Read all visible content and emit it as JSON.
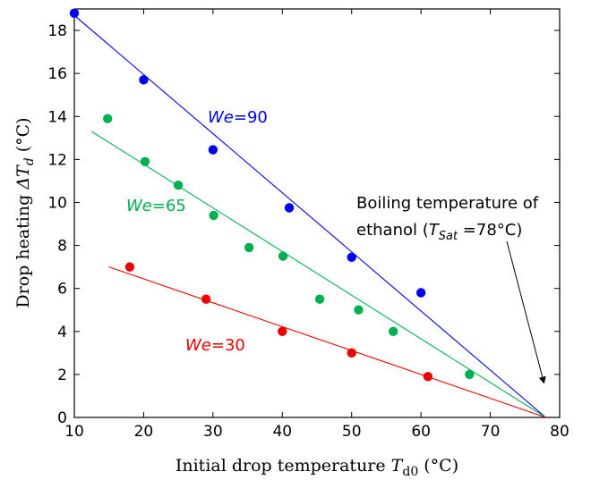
{
  "chart_data": {
    "type": "scatter",
    "xlabel": {
      "main": "Initial drop temperature ",
      "sym": "T",
      "sub": "d0",
      "unit": " (°C)"
    },
    "ylabel": {
      "main": "Drop heating  ",
      "sym": "ΔT",
      "sub": "d",
      "unit": "  (°C)"
    },
    "xlim": [
      10,
      80
    ],
    "ylim": [
      0,
      19
    ],
    "xticks": [
      10,
      20,
      30,
      40,
      50,
      60,
      70,
      80
    ],
    "yticks": [
      0,
      2,
      4,
      6,
      8,
      10,
      12,
      14,
      16,
      18
    ],
    "grid": false,
    "series": [
      {
        "name": "We=90",
        "color": "#0000ee",
        "points": [
          [
            10,
            18.8
          ],
          [
            20,
            15.7
          ],
          [
            30,
            12.45
          ],
          [
            41,
            9.75
          ],
          [
            50,
            7.45
          ],
          [
            60,
            5.8
          ]
        ],
        "fit": [
          [
            10,
            18.7
          ],
          [
            78,
            0
          ]
        ]
      },
      {
        "name": "We=65",
        "color": "#00b050",
        "points": [
          [
            14.8,
            13.9
          ],
          [
            20.2,
            11.9
          ],
          [
            25,
            10.8
          ],
          [
            30.1,
            9.4
          ],
          [
            35.2,
            7.9
          ],
          [
            40.1,
            7.5
          ],
          [
            45.4,
            5.5
          ],
          [
            51,
            5.0
          ],
          [
            56,
            4.0
          ],
          [
            67,
            2.0
          ]
        ],
        "fit": [
          [
            12.5,
            13.3
          ],
          [
            78,
            0
          ]
        ]
      },
      {
        "name": "We=30",
        "color": "#ee0000",
        "points": [
          [
            18,
            7.0
          ],
          [
            29,
            5.5
          ],
          [
            40,
            4.0
          ],
          [
            50,
            3.0
          ],
          [
            61,
            1.9
          ]
        ],
        "fit": [
          [
            15,
            7.0
          ],
          [
            78,
            0
          ]
        ]
      }
    ],
    "annotations": {
      "we90": {
        "sym": "We",
        "val": "=90"
      },
      "we65": {
        "sym": "We",
        "val": "=65"
      },
      "we30": {
        "sym": "We",
        "val": "=30"
      },
      "boiling_line1": "Boiling temperature of",
      "boiling_line2_a": "ethanol (",
      "boiling_sym": "T",
      "boiling_sub": "Sat",
      "boiling_line2_b": " =78°C)",
      "arrow_target": [
        78,
        1.6
      ]
    }
  }
}
